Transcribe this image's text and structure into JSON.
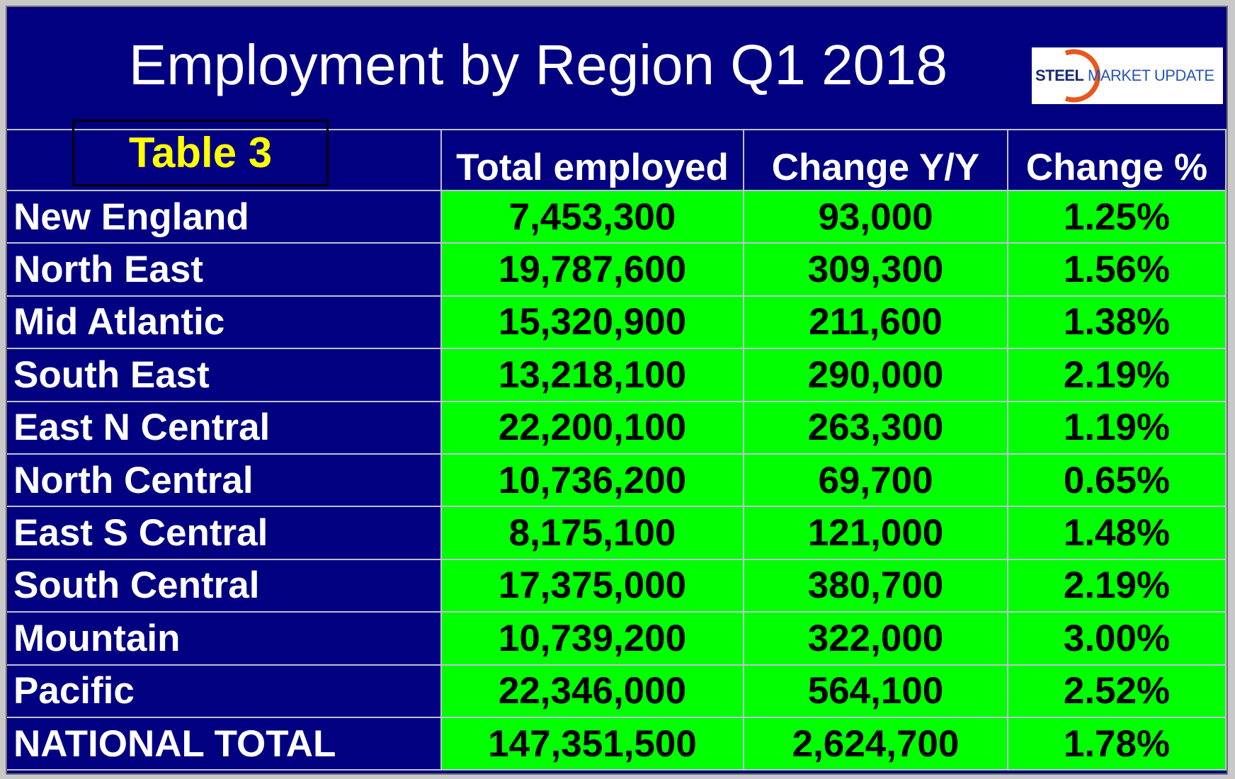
{
  "header": {
    "title": "Employment by Region Q1 2018",
    "badge": "Table 3",
    "logo": {
      "bold": "STEEL",
      "rest": "MARKET UPDATE"
    }
  },
  "table": {
    "columns": [
      "Total employed",
      "Change Y/Y",
      "Change %"
    ],
    "rows": [
      [
        "New England",
        "7,453,300",
        "93,000",
        "1.25%"
      ],
      [
        "North East",
        "19,787,600",
        "309,300",
        "1.56%"
      ],
      [
        "Mid Atlantic",
        "15,320,900",
        "211,600",
        "1.38%"
      ],
      [
        "South East",
        "13,218,100",
        "290,000",
        "2.19%"
      ],
      [
        "East N Central",
        "22,200,100",
        "263,300",
        "1.19%"
      ],
      [
        "North Central",
        "10,736,200",
        "69,700",
        "0.65%"
      ],
      [
        "East S Central",
        "8,175,100",
        "121,000",
        "1.48%"
      ],
      [
        "South Central",
        "17,375,000",
        "380,700",
        "2.19%"
      ],
      [
        "Mountain",
        "10,739,200",
        "322,000",
        "3.00%"
      ],
      [
        "Pacific",
        "22,346,000",
        "564,100",
        "2.52%"
      ],
      [
        "NATIONAL TOTAL",
        "147,351,500",
        "2,624,700",
        "1.78%"
      ]
    ]
  }
}
